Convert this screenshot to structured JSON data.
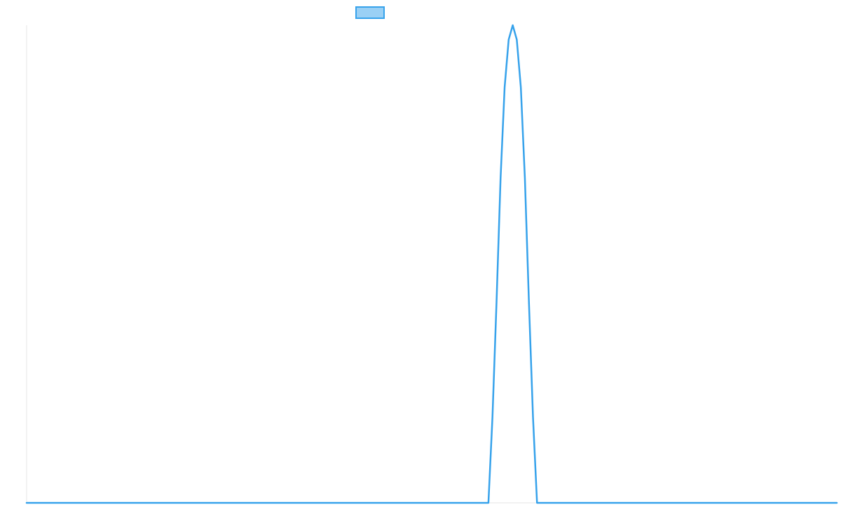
{
  "chart_data": {
    "type": "line",
    "title": "",
    "xlabel": "",
    "ylabel": "",
    "grid": false,
    "legend": {
      "placement": "top-center",
      "show_label": false
    },
    "xlim": [
      0,
      100
    ],
    "ylim": [
      0,
      1
    ],
    "series": [
      {
        "color": "#36a2eb",
        "fill_color": "#9ad0f5",
        "x": [
          0,
          57,
          57.5,
          58,
          58.5,
          59,
          59.5,
          60,
          60.5,
          61,
          61.5,
          62,
          62.5,
          63,
          100
        ],
        "y": [
          0,
          0,
          0.18,
          0.42,
          0.68,
          0.87,
          0.97,
          1.0,
          0.97,
          0.87,
          0.68,
          0.42,
          0.18,
          0,
          0
        ]
      }
    ]
  }
}
